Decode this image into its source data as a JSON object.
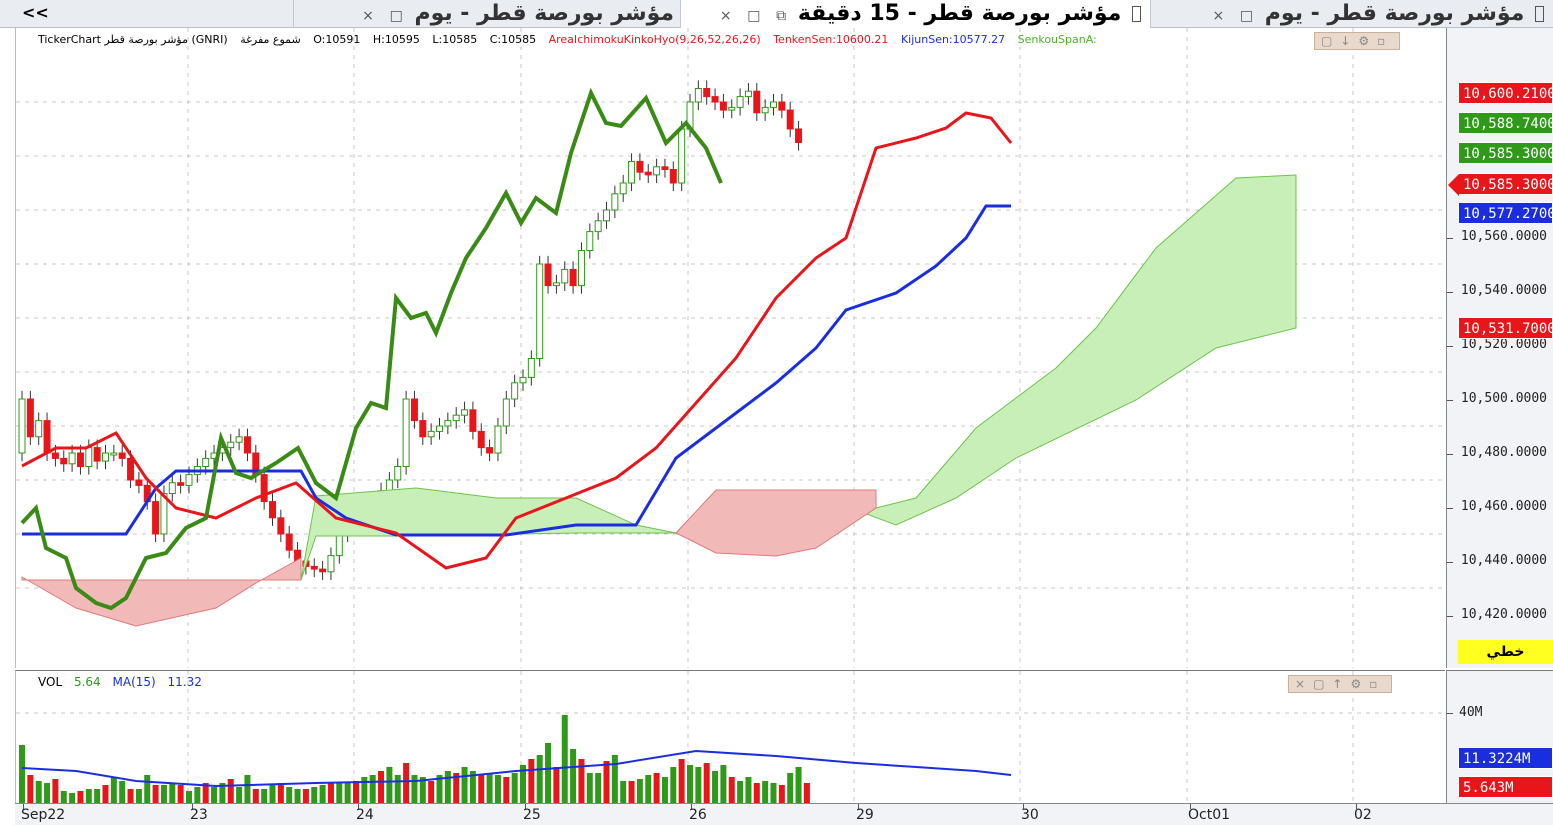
{
  "tabs": {
    "collapse_label": "<<",
    "items": [
      {
        "label": "مؤشر بورصة قطر - يوم",
        "close": "×",
        "restore": "□",
        "active": false
      },
      {
        "label": "مؤشر بورصة قطر - 15 دقيقة",
        "close": "×",
        "restore": "□",
        "detach": "⧉",
        "active": true
      },
      {
        "label": "مؤشر بورصة قطر - يوم",
        "close": "×",
        "restore": "□",
        "active": false
      }
    ]
  },
  "main_pane": {
    "info": {
      "symbol": "TickerChart مؤشر بورصة قطر (GNRI)",
      "chart_type": "شموع مفرغة",
      "open": "O:10591",
      "high": "H:10595",
      "low": "L:10585",
      "close": "C:10585",
      "indicator": "AreaIchimokuKinkoHyo(9,26,52,26,26)",
      "tenkan": "TenkenSen:10600.21",
      "kijun": "KijunSen:10577.27",
      "senkou_a": "SenkouSpanA:"
    },
    "tools_icons": [
      "restore-icon",
      "down-arrow-icon",
      "settings-icon",
      "more-icon"
    ]
  },
  "price_axis": {
    "ticks": [
      "10,560.0000",
      "10,540.0000",
      "10,520.0000",
      "10,500.0000",
      "10,480.0000",
      "10,460.0000",
      "10,440.0000",
      "10,420.0000"
    ],
    "badges": [
      {
        "text": "10,600.2100",
        "color": "#e8161b",
        "value": 10600.21
      },
      {
        "text": "10,588.7400",
        "color": "#2f9a1a",
        "value": 10588.74
      },
      {
        "text": "10,585.3000",
        "color": "#2f9a1a",
        "value": 10585.3
      },
      {
        "text": "10,585.3000",
        "color": "#e8161b",
        "value": 10585.3,
        "arrow": true
      },
      {
        "text": "10,577.2700",
        "color": "#1a2ee0",
        "value": 10577.27
      },
      {
        "text": "10,531.7000",
        "color": "#e8161b",
        "value": 10531.7
      }
    ],
    "drawing_mode_label": "خطي"
  },
  "volume_pane": {
    "info": {
      "label": "VOL",
      "value": "5.64",
      "ma_label": "MA(15)",
      "ma_value": "11.32"
    },
    "axis": {
      "tick": "40M",
      "badges": [
        {
          "text": "11.3224M",
          "color": "#1a2ee0"
        },
        {
          "text": "5.643M",
          "color": "#e8161b"
        }
      ]
    },
    "tools_icons": [
      "close-icon",
      "restore-icon",
      "up-arrow-icon",
      "settings-icon",
      "more-icon"
    ]
  },
  "time_axis": {
    "labels": [
      "Sep22",
      "23",
      "24",
      "25",
      "26",
      "29",
      "30",
      "Oct01",
      "02"
    ]
  },
  "colors": {
    "up": "#2f9a1a",
    "down": "#e8161b",
    "tenkan": "#e8161b",
    "kijun": "#1a2ee0",
    "chikou": "#3a8a16",
    "cloud_bull": "#c9efb9",
    "cloud_bear": "#f2b9b9"
  }
}
